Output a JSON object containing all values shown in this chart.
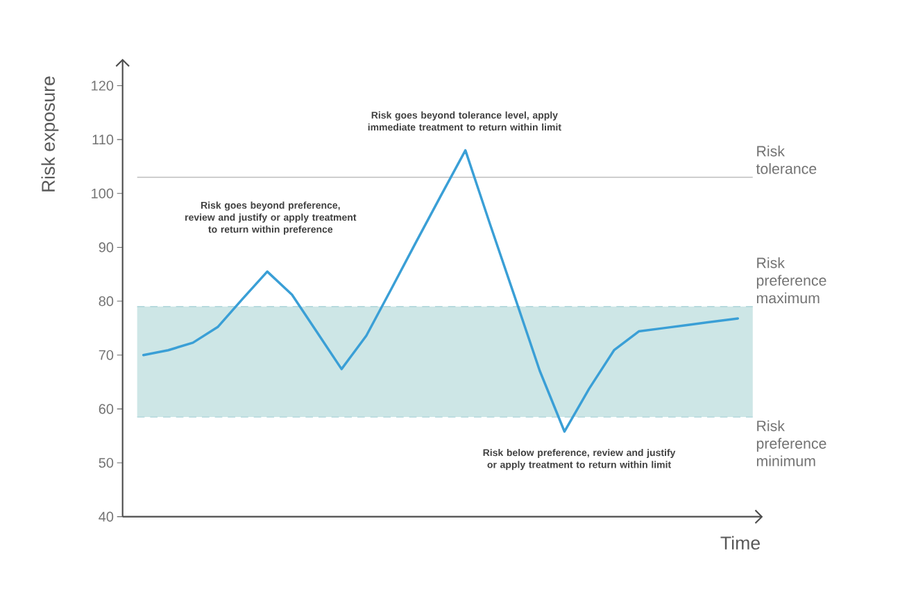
{
  "chart_data": {
    "type": "line",
    "xlabel": "Time",
    "ylabel": "Risk exposure",
    "categories": [
      null,
      null,
      null,
      null,
      null,
      null,
      null,
      null,
      null,
      null,
      null,
      null,
      null,
      null,
      null,
      null,
      null,
      null,
      null,
      null,
      null,
      null,
      null,
      null,
      null
    ],
    "series": [
      {
        "color": "#3a9fd6",
        "values": [
          70,
          70.9,
          72.3,
          75.2,
          80.4,
          85.5,
          81.2,
          74.3,
          67.4,
          73.6,
          82.2,
          90.9,
          99.5,
          108,
          94.2,
          80.7,
          67.1,
          55.8,
          63.8,
          70.9,
          74.4,
          75.0,
          75.6,
          76.2,
          76.8
        ]
      }
    ],
    "ylim": [
      40,
      125
    ],
    "yticks": [
      40,
      50,
      60,
      70,
      80,
      90,
      100,
      110,
      120
    ],
    "ref_lines": [
      {
        "axis": "y",
        "value": 103,
        "label": "Risk tolerance",
        "color": "#bdbdbd",
        "line_style": "solid"
      },
      {
        "axis": "y",
        "value": 79,
        "label": "Risk preference maximum",
        "color": "#b3d8dc",
        "line_style": "dashed"
      },
      {
        "axis": "y",
        "value": 58.5,
        "label": "Risk preference minimum",
        "color": "#b3d8dc",
        "line_style": "dashed"
      }
    ],
    "bands": [
      {
        "axis": "y",
        "from": 58.5,
        "to": 79,
        "color": "#cde6e6"
      }
    ],
    "annotations": [
      "Risk goes beyond preference, review and justify or apply treatment to return within preference",
      "Risk goes beyond tolerance level, apply immediate treatment to return within limit",
      "Risk below preference, review and justify or apply treatment to return within limit"
    ],
    "grid": false,
    "marker": "none",
    "line_style": "solid"
  }
}
